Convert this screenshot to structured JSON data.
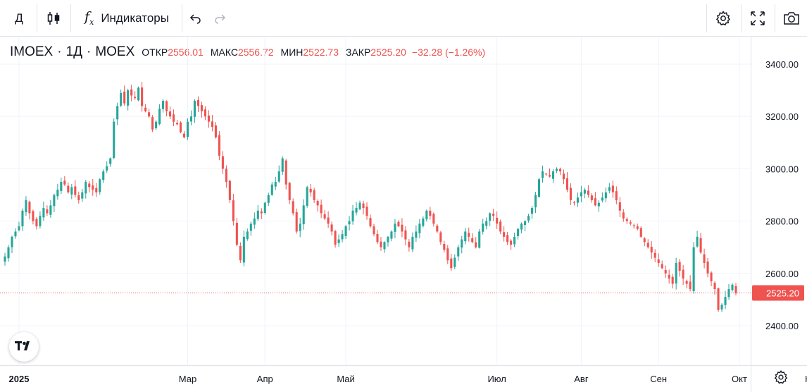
{
  "toolbar": {
    "interval": "Д",
    "indicators_label": "Индикаторы"
  },
  "legend": {
    "symbol": "IMOEX",
    "interval": "1Д",
    "exchange": "MOEX",
    "open_label": "ОТКР",
    "open": "2556.01",
    "high_label": "МАКС",
    "high": "2556.72",
    "low_label": "МИН",
    "low": "2522.73",
    "close_label": "ЗАКР",
    "close": "2525.20",
    "change": "−32.28 (−1.26%)"
  },
  "colors": {
    "up": "#26a69a",
    "down": "#ef5350",
    "grid": "#f0f3fa",
    "text": "#131722",
    "price_line": "#ef5350"
  },
  "chart_data": {
    "type": "candlestick",
    "y_range": [
      2250,
      3480
    ],
    "y_ticks": [
      2400,
      2600,
      2800,
      3000,
      3200,
      3400
    ],
    "y_tick_labels": [
      "2400.00",
      "2600.00",
      "2800.00",
      "3000.00",
      "3200.00",
      "3400.00"
    ],
    "current_price": 2525.2,
    "current_price_label": "2525.20",
    "x_labels": [
      {
        "label": "2025",
        "index": 4,
        "bold": true
      },
      {
        "label": "Мар",
        "index": 52
      },
      {
        "label": "Апр",
        "index": 74
      },
      {
        "label": "Май",
        "index": 97
      },
      {
        "label": "Июл",
        "index": 140
      },
      {
        "label": "Авг",
        "index": 164
      },
      {
        "label": "Сен",
        "index": 186
      },
      {
        "label": "Окт",
        "index": 209
      },
      {
        "label": "Ноя",
        "index": 230
      }
    ],
    "closes": [
      2665,
      2700,
      2740,
      2760,
      2780,
      2840,
      2880,
      2830,
      2800,
      2780,
      2820,
      2850,
      2830,
      2860,
      2900,
      2920,
      2950,
      2940,
      2910,
      2930,
      2900,
      2880,
      2910,
      2950,
      2930,
      2920,
      2910,
      2960,
      2990,
      3010,
      3040,
      3180,
      3240,
      3290,
      3250,
      3300,
      3280,
      3270,
      3310,
      3240,
      3220,
      3200,
      3150,
      3180,
      3230,
      3260,
      3220,
      3200,
      3180,
      3170,
      3140,
      3120,
      3180,
      3200,
      3260,
      3240,
      3220,
      3200,
      3180,
      3160,
      3120,
      3050,
      3000,
      2950,
      2880,
      2800,
      2710,
      2650,
      2740,
      2760,
      2790,
      2810,
      2840,
      2830,
      2870,
      2900,
      2940,
      2950,
      2990,
      3040,
      2940,
      2880,
      2830,
      2760,
      2790,
      2860,
      2930,
      2910,
      2880,
      2860,
      2830,
      2810,
      2790,
      2760,
      2710,
      2730,
      2750,
      2780,
      2800,
      2840,
      2850,
      2870,
      2850,
      2820,
      2780,
      2750,
      2720,
      2700,
      2720,
      2740,
      2760,
      2790,
      2780,
      2760,
      2730,
      2700,
      2740,
      2760,
      2790,
      2810,
      2840,
      2820,
      2790,
      2760,
      2720,
      2690,
      2650,
      2620,
      2660,
      2700,
      2730,
      2760,
      2740,
      2720,
      2700,
      2760,
      2790,
      2800,
      2830,
      2820,
      2790,
      2760,
      2740,
      2720,
      2710,
      2740,
      2770,
      2790,
      2800,
      2820,
      2850,
      2900,
      2960,
      2990,
      2980,
      2970,
      2990,
      3000,
      2990,
      2960,
      2920,
      2880,
      2870,
      2890,
      2910,
      2920,
      2900,
      2880,
      2860,
      2870,
      2890,
      2910,
      2930,
      2910,
      2880,
      2840,
      2810,
      2800,
      2790,
      2780,
      2770,
      2740,
      2720,
      2700,
      2680,
      2660,
      2640,
      2620,
      2600,
      2580,
      2560,
      2640,
      2610,
      2580,
      2560,
      2540,
      2700,
      2740,
      2680,
      2640,
      2600,
      2570,
      2540,
      2460,
      2480,
      2510,
      2540,
      2557,
      2525
    ]
  }
}
